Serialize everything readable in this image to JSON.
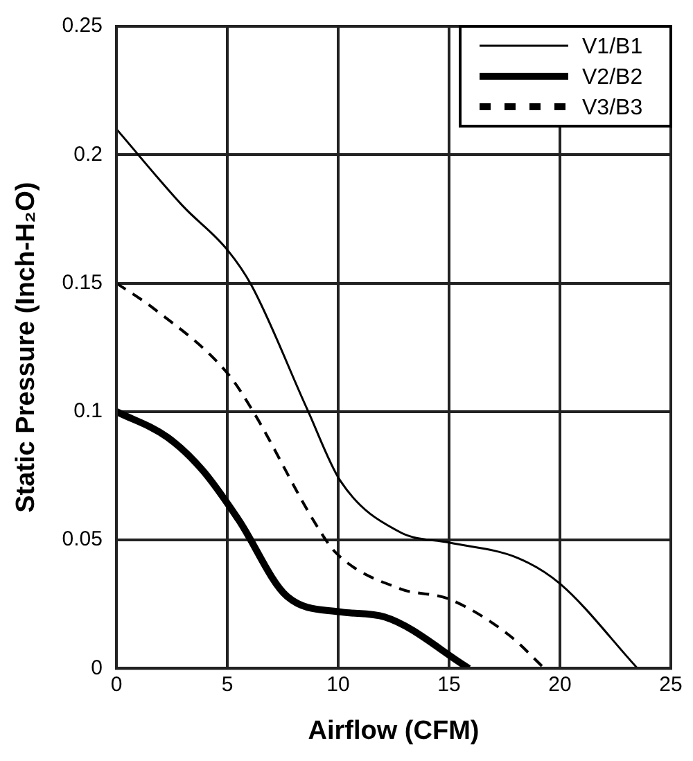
{
  "chart_data": {
    "type": "line",
    "xlabel": "Airflow (CFM)",
    "ylabel": "Static Pressure (Inch-H₂O)",
    "xlim": [
      0,
      25
    ],
    "xticks": [
      0,
      5,
      10,
      15,
      20,
      25
    ],
    "ylim": [
      0,
      0.25
    ],
    "yticks": [
      0,
      0.05,
      0.1,
      0.15,
      0.2,
      0.25
    ],
    "grid": true,
    "legend": "top right",
    "marker": "none",
    "series": [
      {
        "name": "V1/B1",
        "color": "#000000",
        "line_style": "solid",
        "x": [
          0,
          3,
          5,
          6.1,
          8.6,
          10.1,
          12.8,
          15,
          18.1,
          20,
          23.5
        ],
        "values": [
          0.21,
          0.18,
          0.163,
          0.149,
          0.101,
          0.073,
          0.053,
          0.049,
          0.043,
          0.033,
          0
        ]
      },
      {
        "name": "V2/B2",
        "color": "#000000",
        "line_style": "solid",
        "x": [
          0,
          2.3,
          3.9,
          5.5,
          7.7,
          10.1,
          12.1,
          15.9
        ],
        "values": [
          0.1,
          0.09,
          0.077,
          0.058,
          0.028,
          0.022,
          0.02,
          0
        ]
      },
      {
        "name": "V3/B3",
        "color": "#000000",
        "line_style": "dashed",
        "x": [
          0,
          1.7,
          5,
          6.1,
          9,
          9.9,
          12.8,
          15,
          17.7,
          19.3
        ],
        "values": [
          0.15,
          0.14,
          0.115,
          0.101,
          0.056,
          0.045,
          0.031,
          0.027,
          0.013,
          0
        ]
      }
    ]
  }
}
